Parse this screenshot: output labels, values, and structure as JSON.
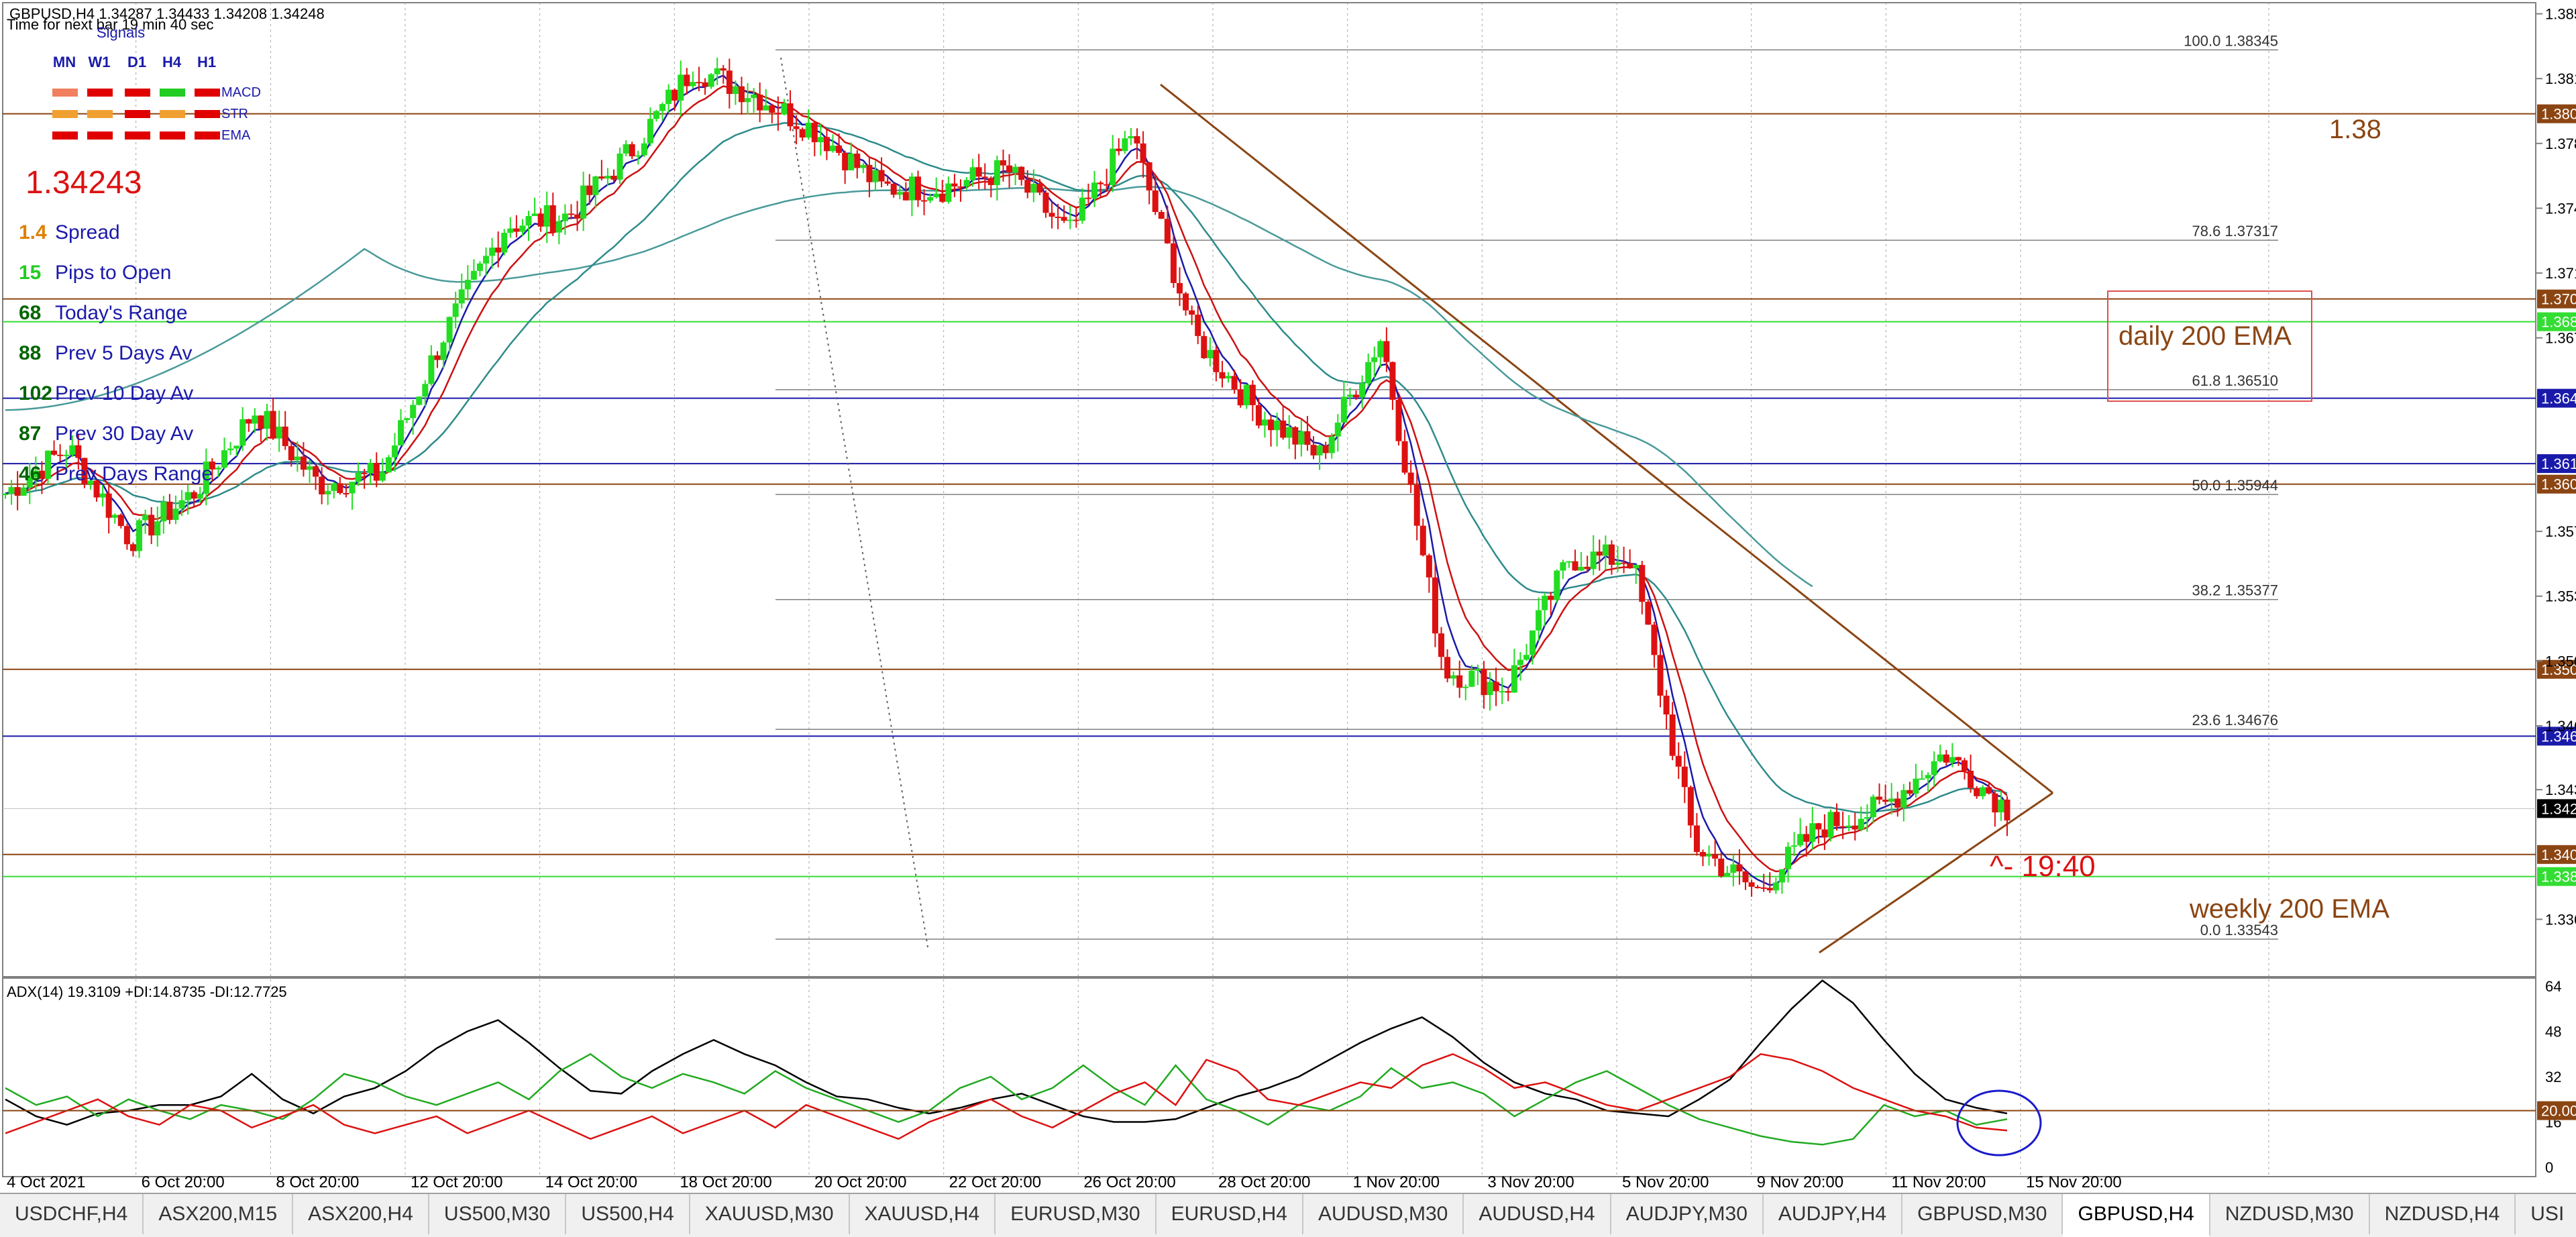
{
  "header": {
    "symbol_line": "GBPUSD,H4  1.34287 1.34433 1.34208 1.34248",
    "timer_text": "Time for next bar  19 min 40 sec"
  },
  "signals": {
    "title": "Signals",
    "timeframes": [
      "MN",
      "W1",
      "D1",
      "H4",
      "H1"
    ],
    "rows": [
      {
        "name": "MACD",
        "colors": [
          "#f08060",
          "#e00000",
          "#e00000",
          "#22cc22",
          "#e00000"
        ]
      },
      {
        "name": "STR",
        "colors": [
          "#f0a030",
          "#f0a030",
          "#e00000",
          "#f0a030",
          "#e00000"
        ]
      },
      {
        "name": "EMA",
        "colors": [
          "#e00000",
          "#e00000",
          "#e00000",
          "#e00000",
          "#e00000"
        ]
      }
    ]
  },
  "info_panel": {
    "price": "1.34243",
    "rows": [
      {
        "value": "1.4",
        "label": "Spread",
        "value_color": "#e08000"
      },
      {
        "value": "15",
        "label": "Pips to Open",
        "value_color": "#22cc22"
      },
      {
        "value": "68",
        "label": "Today's Range",
        "value_color": "#006400"
      },
      {
        "value": "88",
        "label": "Prev 5 Days Av",
        "value_color": "#006400"
      },
      {
        "value": "102",
        "label": "Prev 10 Day Av",
        "value_color": "#006400"
      },
      {
        "value": "87",
        "label": "Prev 30 Day Av",
        "value_color": "#006400"
      },
      {
        "value": "46",
        "label": "Prev Days Range",
        "value_color": "#006400"
      }
    ]
  },
  "annotations": {
    "level_138": "1.38",
    "daily_ema": "daily 200 EMA",
    "weekly_ema": "weekly 200 EMA",
    "time_note": "^- 19:40"
  },
  "chart_data": [
    {
      "type": "candlestick",
      "symbol": "GBPUSD",
      "timeframe": "H4",
      "ylim": [
        1.3334,
        1.386
      ],
      "y_ticks": [
        "1.38540",
        "1.38190",
        "1.37840",
        "1.37490",
        "1.37140",
        "1.36790",
        "1.35745",
        "1.35395",
        "1.35045",
        "1.34695",
        "1.34350",
        "1.33650"
      ],
      "x_tick_labels": [
        "4 Oct 2021",
        "6 Oct 20:00",
        "8 Oct 20:00",
        "12 Oct 20:00",
        "14 Oct 20:00",
        "18 Oct 20:00",
        "20 Oct 20:00",
        "22 Oct 20:00",
        "26 Oct 20:00",
        "28 Oct 20:00",
        "1 Nov 20:00",
        "3 Nov 20:00",
        "5 Nov 20:00",
        "9 Nov 20:00",
        "11 Nov 20:00",
        "15 Nov 20:00"
      ],
      "current_price": 1.34248,
      "price_series_approx": [
        {
          "x": "4 Oct 2021",
          "close": 1.3595
        },
        {
          "x": "5 Oct",
          "close": 1.362
        },
        {
          "x": "6 Oct",
          "close": 1.357
        },
        {
          "x": "7 Oct",
          "close": 1.3595
        },
        {
          "x": "8 Oct",
          "close": 1.364
        },
        {
          "x": "11 Oct",
          "close": 1.36
        },
        {
          "x": "12 Oct",
          "close": 1.3605
        },
        {
          "x": "13 Oct",
          "close": 1.368
        },
        {
          "x": "14 Oct",
          "close": 1.374
        },
        {
          "x": "15 Oct",
          "close": 1.3745
        },
        {
          "x": "18 Oct",
          "close": 1.378
        },
        {
          "x": "19 Oct",
          "close": 1.3825
        },
        {
          "x": "20 Oct",
          "close": 1.381
        },
        {
          "x": "21 Oct",
          "close": 1.379
        },
        {
          "x": "22 Oct",
          "close": 1.376
        },
        {
          "x": "25 Oct",
          "close": 1.376
        },
        {
          "x": "26 Oct",
          "close": 1.377
        },
        {
          "x": "27 Oct",
          "close": 1.3735
        },
        {
          "x": "28 Oct",
          "close": 1.379
        },
        {
          "x": "29 Oct",
          "close": 1.368
        },
        {
          "x": "1 Nov",
          "close": 1.364
        },
        {
          "x": "2 Nov",
          "close": 1.3615
        },
        {
          "x": "3 Nov",
          "close": 1.368
        },
        {
          "x": "4 Nov",
          "close": 1.35
        },
        {
          "x": "5 Nov",
          "close": 1.349
        },
        {
          "x": "8 Nov",
          "close": 1.356
        },
        {
          "x": "9 Nov",
          "close": 1.356
        },
        {
          "x": "10 Nov",
          "close": 1.3405
        },
        {
          "x": "11 Nov",
          "close": 1.338
        },
        {
          "x": "12 Nov",
          "close": 1.3415
        },
        {
          "x": "15 Nov",
          "close": 1.3425
        },
        {
          "x": "16 Nov",
          "close": 1.3455
        },
        {
          "x": "17 Nov",
          "close": 1.34248
        }
      ],
      "horizontal_levels": [
        {
          "price": 1.38,
          "label": "1.38000",
          "color": "#8b4513"
        },
        {
          "price": 1.37,
          "label": "1.37000",
          "color": "#8b4513"
        },
        {
          "price": 1.36877,
          "label": "1.36877",
          "color": "#33dd33"
        },
        {
          "price": 1.36464,
          "label": "1.36464",
          "color": "#1a1aaa"
        },
        {
          "price": 1.36111,
          "label": "1.36111",
          "color": "#1a1aaa"
        },
        {
          "price": 1.36,
          "label": "1.36000",
          "color": "#8b4513"
        },
        {
          "price": 1.35,
          "label": "1.35000",
          "color": "#8b4513"
        },
        {
          "price": 1.34639,
          "label": "1.34639",
          "color": "#1a1aaa"
        },
        {
          "price": 1.34,
          "label": "1.34000",
          "color": "#8b4513"
        },
        {
          "price": 1.33881,
          "label": "1.33881",
          "color": "#33dd33"
        }
      ],
      "fibonacci": [
        {
          "level": "100.0",
          "price": "1.38345"
        },
        {
          "level": "78.6",
          "price": "1.37317"
        },
        {
          "level": "61.8",
          "price": "1.36510"
        },
        {
          "level": "50.0",
          "price": "1.35944"
        },
        {
          "level": "38.2",
          "price": "1.35377"
        },
        {
          "level": "23.6",
          "price": "1.34676"
        },
        {
          "level": "0.0",
          "price": "1.33543"
        }
      ]
    },
    {
      "type": "line",
      "title": "ADX(14) 19.3109 +DI:14.8735 -DI:12.7725",
      "ylim": [
        0,
        64
      ],
      "y_ticks": [
        "64",
        "48",
        "32",
        "20.0000",
        "16",
        "0"
      ],
      "level": 20,
      "series": [
        {
          "name": "ADX",
          "color": "#000000",
          "values": [
            24,
            18,
            15,
            19,
            20,
            22,
            22,
            25,
            33,
            24,
            19,
            25,
            28,
            34,
            42,
            48,
            52,
            44,
            35,
            27,
            26,
            34,
            40,
            45,
            40,
            36,
            30,
            25,
            24,
            21,
            19,
            21,
            24,
            26,
            22,
            18,
            16,
            16,
            17,
            21,
            25,
            28,
            32,
            38,
            44,
            49,
            53,
            46,
            37,
            30,
            26,
            24,
            20,
            19,
            18,
            24,
            31,
            44,
            56,
            66,
            58,
            45,
            33,
            24,
            21,
            19
          ]
        },
        {
          "name": "+DI",
          "color": "#22aa22",
          "values": [
            28,
            22,
            25,
            18,
            24,
            20,
            17,
            22,
            20,
            17,
            24,
            33,
            30,
            25,
            22,
            26,
            30,
            24,
            34,
            40,
            32,
            28,
            33,
            30,
            26,
            34,
            28,
            24,
            20,
            16,
            20,
            28,
            32,
            24,
            28,
            36,
            28,
            22,
            36,
            24,
            20,
            15,
            22,
            20,
            25,
            35,
            28,
            30,
            26,
            18,
            24,
            30,
            34,
            28,
            22,
            17,
            14,
            11,
            9,
            8,
            10,
            22,
            18,
            20,
            15,
            17
          ]
        },
        {
          "name": "-DI",
          "color": "#dd1111",
          "values": [
            12,
            16,
            20,
            24,
            18,
            15,
            22,
            20,
            14,
            18,
            22,
            15,
            12,
            15,
            18,
            12,
            16,
            20,
            15,
            10,
            14,
            18,
            12,
            16,
            20,
            14,
            22,
            18,
            14,
            10,
            16,
            20,
            24,
            18,
            14,
            20,
            26,
            30,
            22,
            38,
            34,
            24,
            22,
            26,
            30,
            28,
            36,
            40,
            35,
            28,
            30,
            26,
            22,
            20,
            24,
            28,
            32,
            40,
            38,
            34,
            28,
            24,
            20,
            18,
            14,
            13
          ]
        }
      ]
    }
  ],
  "tabs": [
    {
      "label": "USDCHF,H4",
      "active": false
    },
    {
      "label": "ASX200,M15",
      "active": false
    },
    {
      "label": "ASX200,H4",
      "active": false
    },
    {
      "label": "US500,M30",
      "active": false
    },
    {
      "label": "US500,H4",
      "active": false
    },
    {
      "label": "XAUUSD,M30",
      "active": false
    },
    {
      "label": "XAUUSD,H4",
      "active": false
    },
    {
      "label": "EURUSD,M30",
      "active": false
    },
    {
      "label": "EURUSD,H4",
      "active": false
    },
    {
      "label": "AUDUSD,M30",
      "active": false
    },
    {
      "label": "AUDUSD,H4",
      "active": false
    },
    {
      "label": "AUDJPY,M30",
      "active": false
    },
    {
      "label": "AUDJPY,H4",
      "active": false
    },
    {
      "label": "GBPUSD,M30",
      "active": false
    },
    {
      "label": "GBPUSD,H4",
      "active": true
    },
    {
      "label": "NZDUSD,M30",
      "active": false
    },
    {
      "label": "NZDUSD,H4",
      "active": false
    },
    {
      "label": "USI",
      "active": false
    }
  ]
}
